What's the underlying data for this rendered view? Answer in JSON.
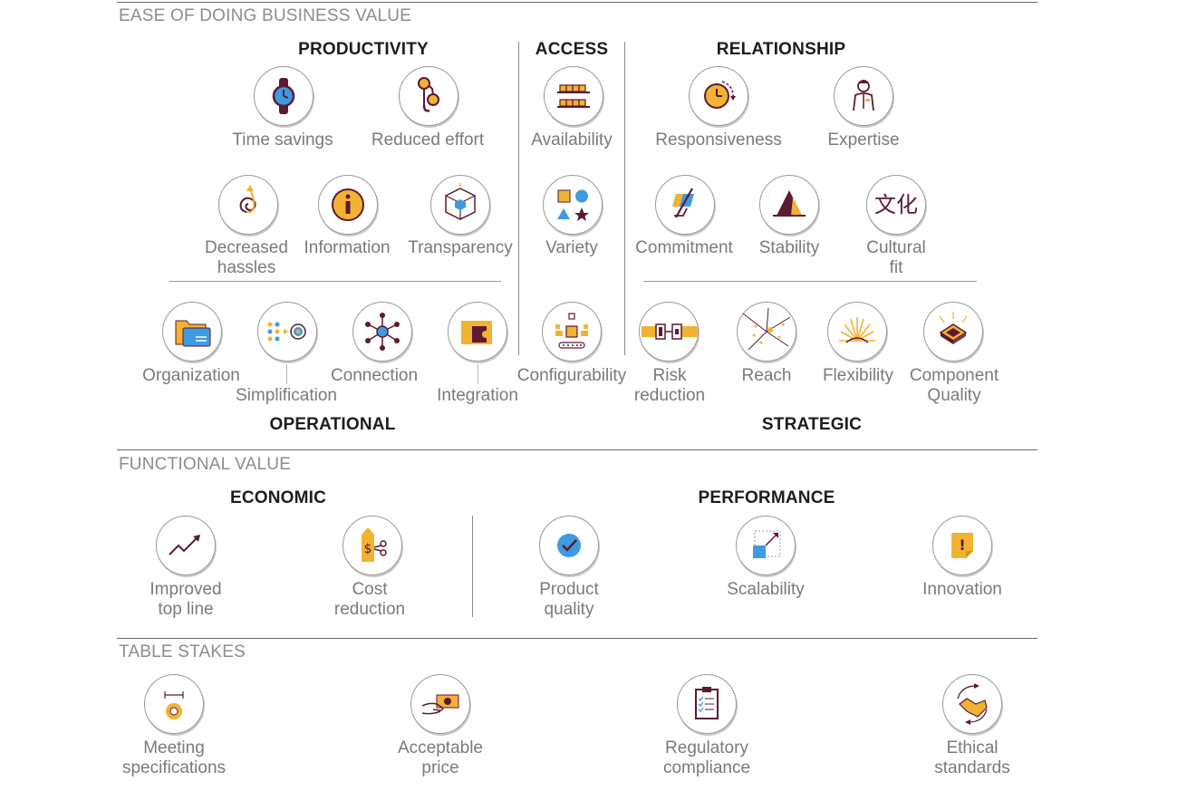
{
  "sections": {
    "ease": "EASE OF DOING BUSINESS VALUE",
    "functional": "FUNCTIONAL VALUE",
    "table": "TABLE STAKES"
  },
  "groups": {
    "productivity": "PRODUCTIVITY",
    "access": "ACCESS",
    "relationship": "RELATIONSHIP",
    "operational": "OPERATIONAL",
    "strategic": "STRATEGIC",
    "economic": "ECONOMIC",
    "performance": "PERFORMANCE"
  },
  "items": {
    "time_savings": "Time savings",
    "reduced_effort": "Reduced effort",
    "availability": "Availability",
    "responsiveness": "Responsiveness",
    "expertise": "Expertise",
    "decreased_hassles": [
      "Decreased",
      "hassles"
    ],
    "information": "Information",
    "transparency": "Transparency",
    "variety": "Variety",
    "commitment": "Commitment",
    "stability": "Stability",
    "cultural_fit": [
      "Cultural",
      "fit"
    ],
    "cultural_fit_glyph": "文化",
    "organization": "Organization",
    "simplification": "Simplification",
    "connection": "Connection",
    "integration": "Integration",
    "configurability": "Configurability",
    "risk_reduction": [
      "Risk",
      "reduction"
    ],
    "reach": "Reach",
    "flexibility": "Flexibility",
    "component_quality": [
      "Component",
      "Quality"
    ],
    "improved_top_line": [
      "Improved",
      "top line"
    ],
    "cost_reduction": [
      "Cost",
      "reduction"
    ],
    "product_quality": [
      "Product",
      "quality"
    ],
    "scalability": "Scalability",
    "innovation": "Innovation",
    "meeting_specifications": [
      "Meeting",
      "specifications"
    ],
    "acceptable_price": [
      "Acceptable",
      "price"
    ],
    "regulatory_compliance": [
      "Regulatory",
      "compliance"
    ],
    "ethical_standards": [
      "Ethical",
      "standards"
    ],
    "cost_glyph": "$",
    "innovation_glyph": "!"
  },
  "colors": {
    "gold": "#F2B233",
    "maroon": "#5C1A33",
    "blue": "#3D9BE0",
    "text_label": "#7a7a7a",
    "text_section": "#8c8c8c",
    "text_group": "#1d1d1d"
  }
}
